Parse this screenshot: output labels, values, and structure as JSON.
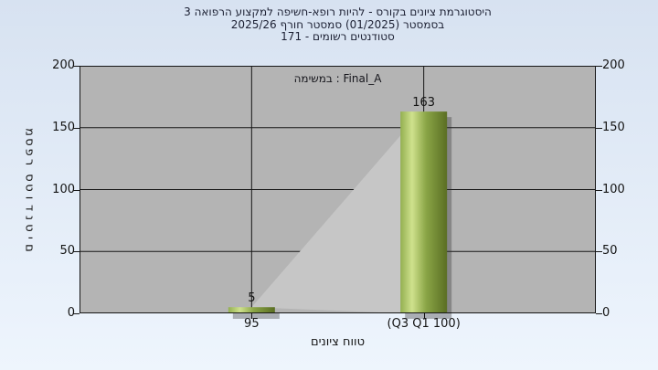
{
  "header": {
    "line1": "היסטוגרמת ציונים בקורס - להיות רופא-חשיפה למקצוע הרפואה 3",
    "line2": "בסמסטר (01/2025) סמסטר חורף 2025/26",
    "line3": "סטודנטים רשומים - 171"
  },
  "chart_data": {
    "type": "bar",
    "title": "היסטוגרמת ציונים בקורס - להיות רופא-חשיפה למקצוע הרפואה 3",
    "legend": "במשימה : Final_A",
    "legend_position": "top-center",
    "xlabel": "טווח ציונים",
    "ylabel": "מספר סטודנטים",
    "categories": [
      "95",
      "(Q3 Q1 100)"
    ],
    "values": [
      5,
      163
    ],
    "registered_students": 171,
    "yticks": [
      0,
      50,
      100,
      150,
      200
    ],
    "ylim": [
      0,
      200
    ],
    "grid": true,
    "colors": {
      "background_top": "#d7e2f1",
      "background_bottom": "#eef5fd",
      "plot_background": "#b4b4b4",
      "highlight_triangle": "#c6c6c6",
      "axis_line": "#161616",
      "text": "#141414",
      "bar_gradient": [
        "#93b050",
        "#cfe18d",
        "#8aa546",
        "#5a6e23"
      ],
      "bar_shadow": "rgba(50,50,50,0.35)"
    }
  }
}
